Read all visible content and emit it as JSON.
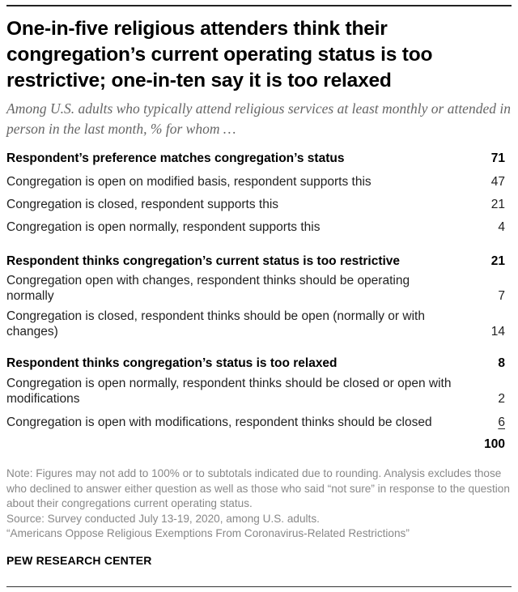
{
  "chart_data": {
    "type": "table",
    "title": "One-in-five religious attenders think their congregation’s current operating status is too restrictive; one-in-ten say it is too relaxed",
    "subtitle": "Among U.S. adults who typically attend religious services at least monthly or attended in person in the last month, % for whom …",
    "unit": "%",
    "groups": [
      {
        "label": "Respondent’s preference matches congregation’s status",
        "value": 71,
        "items": [
          {
            "label": "Congregation is open on modified basis, respondent supports this",
            "value": 47
          },
          {
            "label": "Congregation is closed, respondent supports this",
            "value": 21
          },
          {
            "label": "Congregation is open normally, respondent supports this",
            "value": 4
          }
        ]
      },
      {
        "label": "Respondent thinks congregation’s current status is too restrictive",
        "value": 21,
        "items": [
          {
            "label": "Congregation open with changes, respondent thinks should be operating normally",
            "value": 7
          },
          {
            "label": "Congregation is closed, respondent thinks should be open (normally or with changes)",
            "value": 14
          }
        ]
      },
      {
        "label": "Respondent thinks congregation’s status is too relaxed",
        "value": 8,
        "items": [
          {
            "label": "Congregation is open normally, respondent thinks should be closed or open with modifications",
            "value": 2
          },
          {
            "label": "Congregation is open with modifications, respondent thinks should be closed",
            "value": 6
          }
        ]
      }
    ],
    "total": 100
  },
  "notes": {
    "note": "Note: Figures may not add to 100% or to subtotals indicated due to rounding. Analysis excludes those who declined to answer either question as well as those who said “not sure” in response to the question about their congregations current operating status.",
    "source": "Source: Survey conducted July 13-19, 2020, among U.S. adults.",
    "report": "“Americans Oppose Religious Exemptions From Coronavirus-Related Restrictions”"
  },
  "credit": "PEW RESEARCH CENTER"
}
